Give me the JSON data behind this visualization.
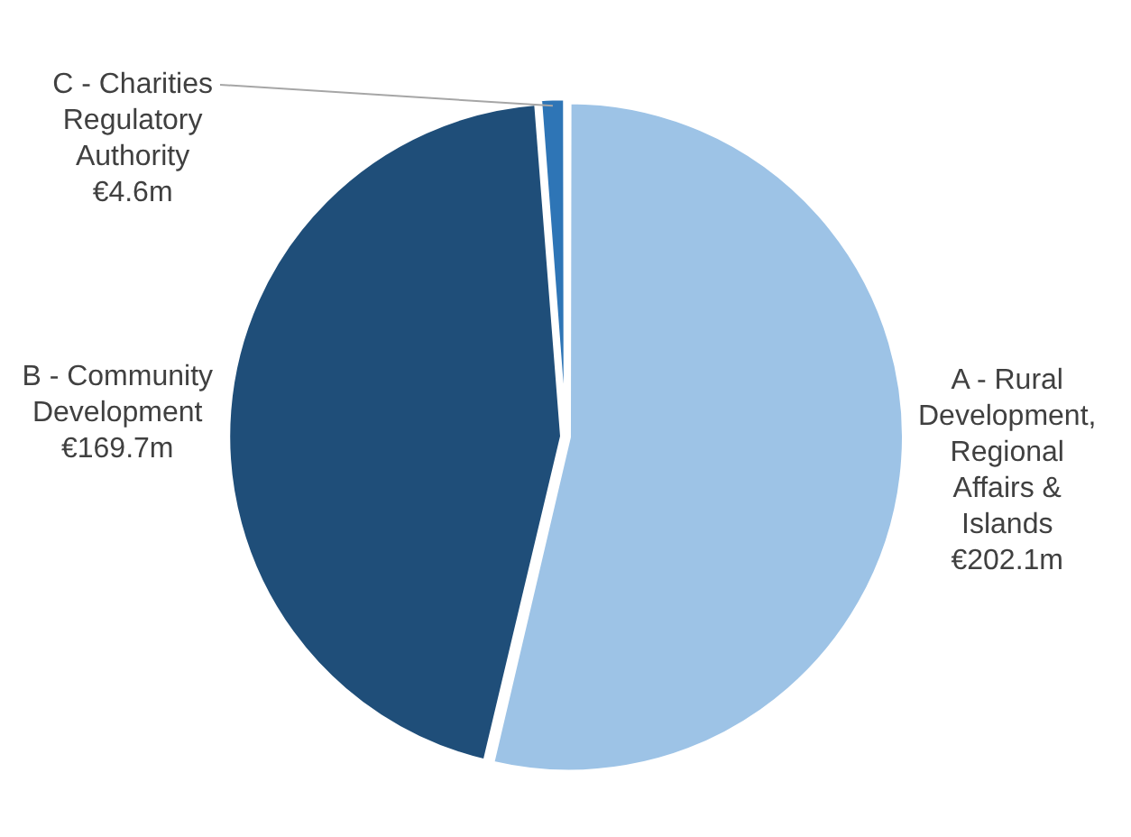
{
  "chart_data": {
    "type": "pie",
    "categories": [
      "A - Rural Development, Regional Affairs & Islands",
      "B - Community Development",
      "C - Charities Regulatory Authority"
    ],
    "values": [
      202.1,
      169.7,
      4.6
    ],
    "value_labels": [
      "€202.1m",
      "€169.7m",
      "€4.6m"
    ],
    "colors": [
      "#9dc3e6",
      "#1f4e79",
      "#2e75b6"
    ],
    "legend": false
  }
}
